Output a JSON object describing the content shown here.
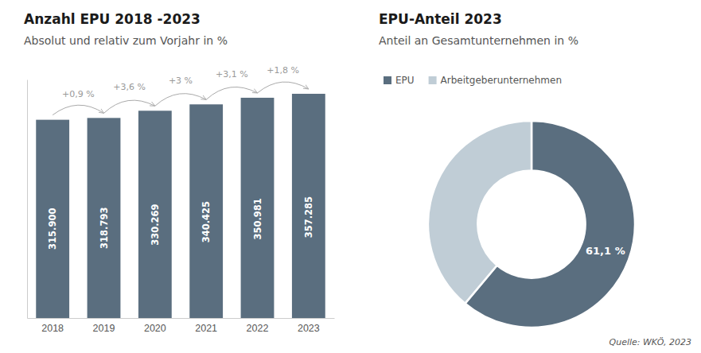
{
  "chart_data": [
    {
      "type": "bar",
      "title": "Anzahl EPU 2018 -2023",
      "subtitle": "Absolut und relativ zum Vorjahr in %",
      "categories": [
        "2018",
        "2019",
        "2020",
        "2021",
        "2022",
        "2023"
      ],
      "values": [
        315900,
        318793,
        330269,
        340425,
        350981,
        357285
      ],
      "value_labels": [
        "315.900",
        "318.793",
        "330.269",
        "340.425",
        "350.981",
        "357.285"
      ],
      "data_labels": true,
      "annotations": [
        null,
        "+0,9 %",
        "+3,6 %",
        "+3 %",
        "+3,1 %",
        "+1,8 %"
      ],
      "color": "#5a6e7f",
      "ylim": [
        0,
        380046.75
      ],
      "tick_labels": "x",
      "grid": false
    },
    {
      "type": "pie",
      "title": "EPU-Anteil 2023",
      "subtitle": "Anteil an Gesamtunternehmen in %",
      "categories": [
        "EPU",
        "Arbeitgeberunternehmen"
      ],
      "values": [
        61.1,
        38.9
      ],
      "value_labels": [
        "61,1 %",
        null
      ],
      "data_labels": true,
      "colors": [
        "#5a6e7f",
        "#c0cdd6"
      ],
      "legend": "top"
    }
  ],
  "source": "Quelle: WKÖ, 2023"
}
